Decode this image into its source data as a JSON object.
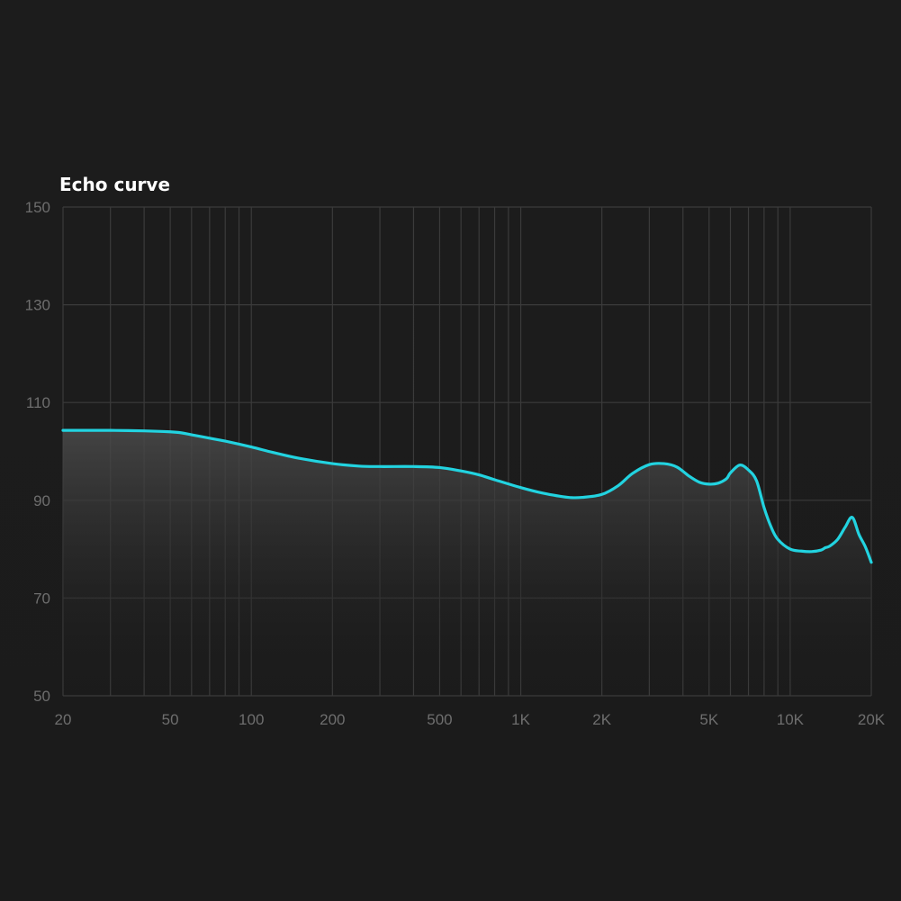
{
  "chart_data": {
    "type": "area",
    "title": "Echo curve",
    "xlabel": "",
    "ylabel": "",
    "x_scale": "log",
    "xlim": [
      20,
      20000
    ],
    "ylim": [
      50,
      150
    ],
    "grid": true,
    "x_ticks": [
      {
        "value": 20,
        "label": "20"
      },
      {
        "value": 50,
        "label": "50"
      },
      {
        "value": 100,
        "label": "100"
      },
      {
        "value": 200,
        "label": "200"
      },
      {
        "value": 500,
        "label": "500"
      },
      {
        "value": 1000,
        "label": "1K"
      },
      {
        "value": 2000,
        "label": "2K"
      },
      {
        "value": 5000,
        "label": "5K"
      },
      {
        "value": 10000,
        "label": "10K"
      },
      {
        "value": 20000,
        "label": "20K"
      }
    ],
    "y_ticks": [
      {
        "value": 150,
        "label": "150"
      },
      {
        "value": 130,
        "label": "130"
      },
      {
        "value": 110,
        "label": "110"
      },
      {
        "value": 90,
        "label": "90"
      },
      {
        "value": 70,
        "label": "70"
      },
      {
        "value": 50,
        "label": "50"
      }
    ],
    "grid_x": [
      20,
      30,
      40,
      50,
      60,
      70,
      80,
      90,
      100,
      200,
      300,
      400,
      500,
      600,
      700,
      800,
      900,
      1000,
      2000,
      3000,
      4000,
      5000,
      6000,
      7000,
      8000,
      9000,
      10000,
      20000
    ],
    "grid_y": [
      150,
      130,
      110,
      90,
      70,
      50
    ],
    "series": [
      {
        "color": "#22d3e0",
        "x": [
          20,
          25,
          30,
          40,
          50,
          55,
          60,
          70,
          80,
          100,
          120,
          150,
          200,
          250,
          300,
          400,
          500,
          600,
          700,
          800,
          1000,
          1200,
          1500,
          1700,
          2000,
          2300,
          2600,
          3000,
          3400,
          3800,
          4200,
          4600,
          5000,
          5400,
          5800,
          6000,
          6500,
          7000,
          7500,
          8000,
          8500,
          9000,
          10000,
          11000,
          12000,
          13000,
          13500,
          14000,
          15000,
          16000,
          17000,
          18000,
          19000,
          20000
        ],
        "y": [
          104.3,
          104.3,
          104.3,
          104.2,
          104.0,
          103.8,
          103.4,
          102.7,
          102.1,
          100.9,
          99.8,
          98.6,
          97.5,
          97.0,
          96.9,
          96.9,
          96.7,
          96.0,
          95.2,
          94.2,
          92.6,
          91.5,
          90.6,
          90.6,
          91.2,
          93.0,
          95.5,
          97.3,
          97.5,
          96.8,
          95.0,
          93.7,
          93.3,
          93.5,
          94.4,
          95.6,
          97.2,
          96.2,
          94.0,
          88.5,
          84.5,
          82.0,
          80.0,
          79.6,
          79.5,
          79.8,
          80.3,
          80.6,
          82.0,
          84.5,
          86.5,
          83.0,
          80.5,
          77.3
        ]
      }
    ]
  }
}
